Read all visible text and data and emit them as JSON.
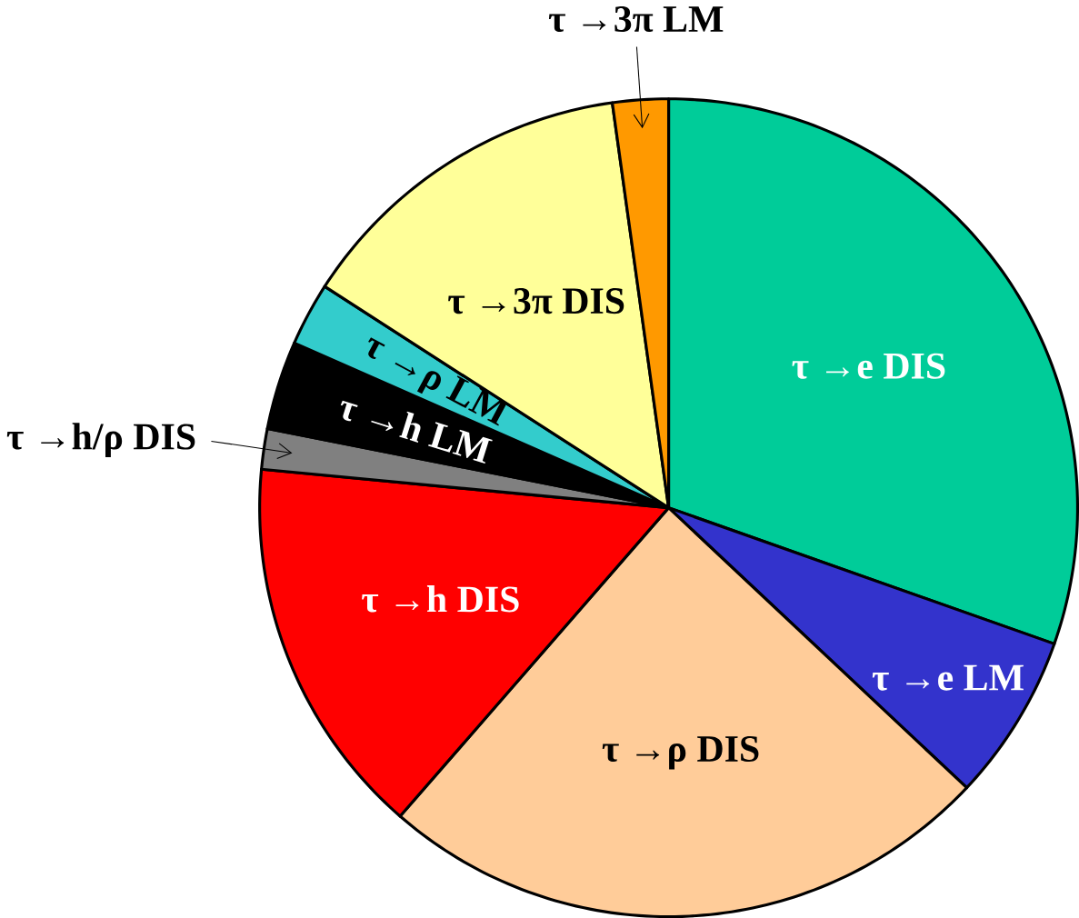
{
  "chart_data": {
    "type": "pie",
    "categories": [
      "τ →e DIS",
      "τ →e LM",
      "τ →ρ DIS",
      "τ →h DIS",
      "τ →h/ρ DIS",
      "τ →h LM",
      "τ →ρ LM",
      "τ →3π DIS",
      "τ →3π LM"
    ],
    "values": [
      30.4,
      6.6,
      24.4,
      15.1,
      1.6,
      3.5,
      2.5,
      13.7,
      2.2
    ],
    "colors": [
      "#00cc99",
      "#3333cc",
      "#ffcc99",
      "#ff0000",
      "#808080",
      "#000000",
      "#33cccc",
      "#ffff99",
      "#ff9900"
    ]
  }
}
